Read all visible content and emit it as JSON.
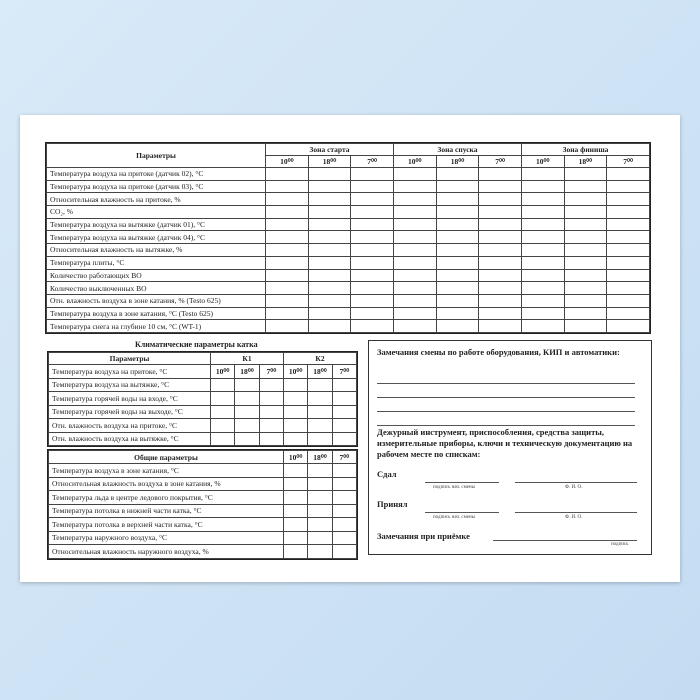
{
  "times": [
    "10⁰⁰",
    "18⁰⁰",
    "7⁰⁰"
  ],
  "main_table": {
    "header": "Параметры",
    "zones": [
      "Зона старта",
      "Зона спуска",
      "Зона финиша"
    ],
    "rows": [
      "Температура воздуха на притоке (датчик 02), °С",
      "Температура воздуха на притоке (датчик 03), °С",
      "Относительная влажность на притоке, %",
      "CO₂, %",
      "Температура воздуха на вытяжке (датчик 01), °С",
      "Температура воздуха на вытяжке (датчик 04), °С",
      "Относительная влажность на вытяжке, %",
      "Температура плиты, °С",
      "Количество работающих ВО",
      "Количество выключенных ВО",
      "Отн. влажность воздуха в зоне катания, %        (Testo 625)",
      "Температура воздуха в зоне катания, °С           (Testo 625)",
      "Температура снега на глубине 10 см, °С            (WT-1)"
    ]
  },
  "climate": {
    "title": "Климатические параметры катка",
    "header": "Параметры",
    "groups": [
      "К1",
      "К2"
    ],
    "rows": [
      "Температура воздуха на притоке, °С",
      "Температура воздуха на вытяжке, °С",
      "Температура горячей воды на входе, °С",
      "Температура горячей воды на выходе, °С",
      "Отн. влажность воздуха на притоке, °С",
      "Отн. влажность воздуха на вытяжке, °С"
    ]
  },
  "general": {
    "header": "Общие параметры",
    "rows": [
      "Температура воздуха в зоне катания, °С",
      "Относительная влажность воздуха в зоне катания, %",
      "Температура льда в центре ледового покрытия, °С",
      "Температура потолка в нижней части катка, °С",
      "Температура потолка в верхней части катка, °С",
      "Температура наружного воздуха, °С",
      "Относительная влажность наружного воздуха, %"
    ]
  },
  "notes": {
    "remarks_title": "Замечания смены по работе оборудования, КИП и автоматики:",
    "inventory_text": "Дежурный инструмент, приспособления, средства защиты, измерительные приборы, ключи и техническую документацию на рабочем месте по спискам:",
    "handed": "Сдал",
    "received": "Принял",
    "sign_caption": "подпись нач. смены",
    "name_caption": "Ф. И. О.",
    "acceptance": "Замечания при приёмке",
    "signature": "подпись"
  }
}
